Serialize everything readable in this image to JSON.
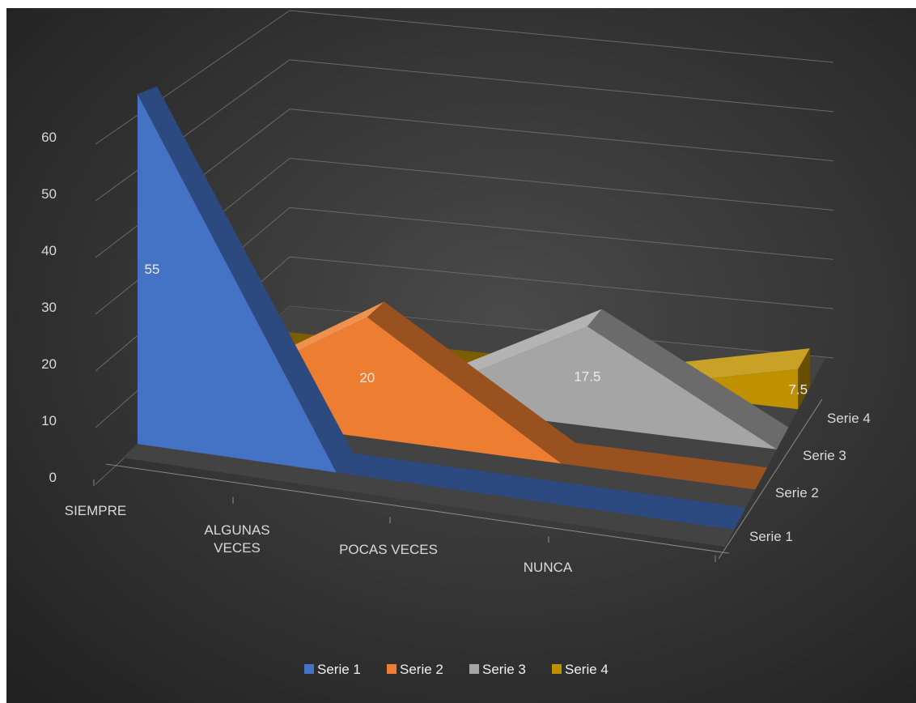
{
  "chart_data": {
    "type": "area",
    "variant": "3d-area",
    "categories": [
      "SIEMPRE",
      "ALGUNAS VECES",
      "POCAS VECES",
      "NUNCA"
    ],
    "series": [
      {
        "name": "Serie 1",
        "values": [
          55,
          0,
          0,
          0
        ],
        "color": "#4472c4"
      },
      {
        "name": "Serie 2",
        "values": [
          0,
          20,
          0,
          0
        ],
        "color": "#ed7d31"
      },
      {
        "name": "Serie 3",
        "values": [
          0,
          0,
          17.5,
          0
        ],
        "color": "#a5a5a5"
      },
      {
        "name": "Serie 4",
        "values": [
          0,
          0,
          0,
          7.5
        ],
        "color": "#bf9000"
      }
    ],
    "data_labels": [
      {
        "series": "Serie 1",
        "text": "55"
      },
      {
        "series": "Serie 2",
        "text": "20"
      },
      {
        "series": "Serie 3",
        "text": "17.5"
      },
      {
        "series": "Serie 4",
        "text": "7.5"
      }
    ],
    "y_ticks": [
      "0",
      "10",
      "20",
      "30",
      "40",
      "50",
      "60"
    ],
    "ylim": [
      0,
      60
    ],
    "title": "",
    "xlabel": "",
    "ylabel": "",
    "grid": true,
    "legend_position": "bottom",
    "background": "#3a3a3a"
  }
}
